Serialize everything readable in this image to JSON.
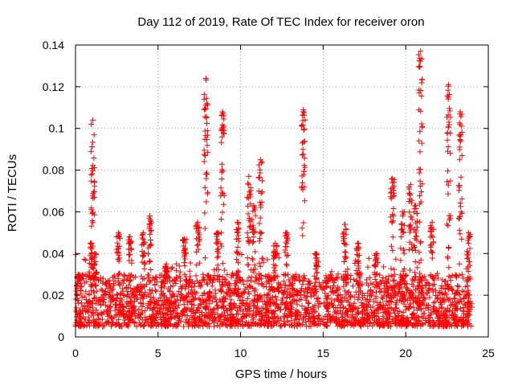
{
  "chart_data": {
    "type": "scatter",
    "title": "Day 112 of 2019, Rate Of TEC Index for receiver oron",
    "xlabel": "GPS time / hours",
    "ylabel": "ROTI / TECUs",
    "xlim": [
      0,
      25
    ],
    "ylim": [
      0,
      0.14
    ],
    "x_ticks": [
      0,
      5,
      10,
      15,
      20,
      25
    ],
    "x_tick_labels": [
      "0",
      "5",
      "10",
      "15",
      "20",
      "25"
    ],
    "y_ticks": [
      0,
      0.02,
      0.04,
      0.06,
      0.08,
      0.1,
      0.12,
      0.14
    ],
    "y_tick_labels": [
      "0",
      "0.02",
      "0.04",
      "0.06",
      "0.08",
      "0.1",
      "0.12",
      "0.14"
    ],
    "grid": true,
    "marker": "+",
    "color": "#ff0000",
    "series": [
      {
        "name": "ROTI",
        "baseline": {
          "x_range": [
            0,
            24
          ],
          "y_min": 0.005,
          "y_max": 0.03,
          "points": 2600
        },
        "spikes": [
          {
            "x": 0.2,
            "peak": 0.03
          },
          {
            "x": 0.9,
            "peak": 0.045
          },
          {
            "x": 1.05,
            "peak": 0.104
          },
          {
            "x": 1.2,
            "peak": 0.04
          },
          {
            "x": 2.6,
            "peak": 0.05
          },
          {
            "x": 3.3,
            "peak": 0.048
          },
          {
            "x": 4.1,
            "peak": 0.05
          },
          {
            "x": 4.5,
            "peak": 0.058
          },
          {
            "x": 5.5,
            "peak": 0.035
          },
          {
            "x": 6.6,
            "peak": 0.047
          },
          {
            "x": 7.4,
            "peak": 0.055
          },
          {
            "x": 7.9,
            "peak": 0.124
          },
          {
            "x": 8.6,
            "peak": 0.05
          },
          {
            "x": 8.9,
            "peak": 0.108
          },
          {
            "x": 9.8,
            "peak": 0.055
          },
          {
            "x": 10.5,
            "peak": 0.077
          },
          {
            "x": 10.8,
            "peak": 0.063
          },
          {
            "x": 11.2,
            "peak": 0.085
          },
          {
            "x": 12.1,
            "peak": 0.045
          },
          {
            "x": 12.8,
            "peak": 0.05
          },
          {
            "x": 13.8,
            "peak": 0.109
          },
          {
            "x": 14.6,
            "peak": 0.04
          },
          {
            "x": 16.3,
            "peak": 0.054
          },
          {
            "x": 17.1,
            "peak": 0.045
          },
          {
            "x": 18.2,
            "peak": 0.04
          },
          {
            "x": 19.2,
            "peak": 0.076
          },
          {
            "x": 19.8,
            "peak": 0.06
          },
          {
            "x": 20.3,
            "peak": 0.073
          },
          {
            "x": 20.6,
            "peak": 0.063
          },
          {
            "x": 20.9,
            "peak": 0.137
          },
          {
            "x": 21.6,
            "peak": 0.055
          },
          {
            "x": 22.6,
            "peak": 0.121
          },
          {
            "x": 23.3,
            "peak": 0.108
          },
          {
            "x": 23.8,
            "peak": 0.05
          }
        ]
      }
    ]
  }
}
